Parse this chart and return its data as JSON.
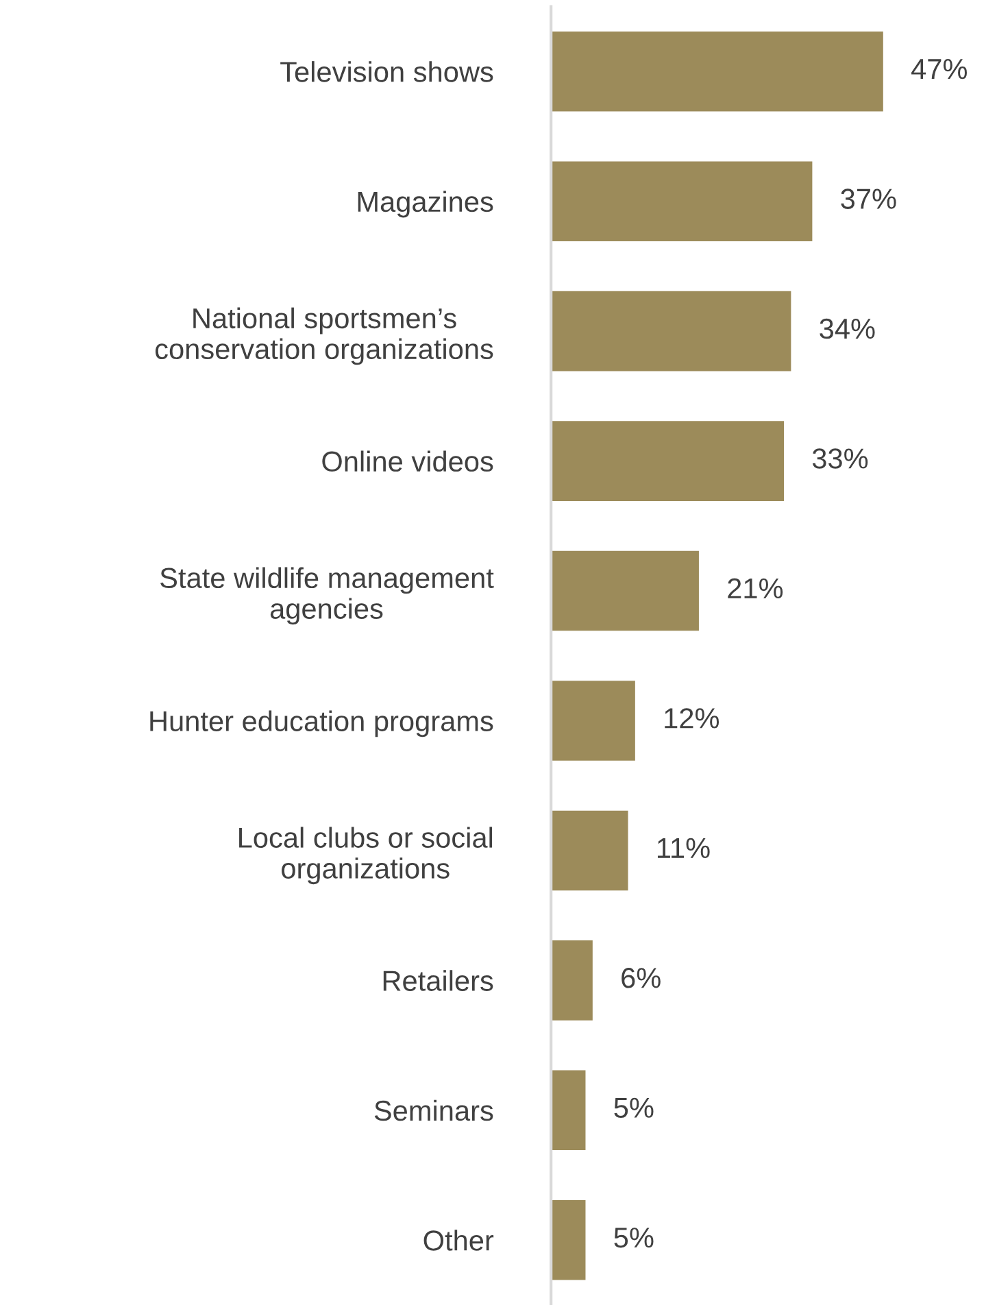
{
  "chart_data": {
    "type": "bar",
    "orientation": "horizontal",
    "categories": [
      "Television shows",
      "Magazines",
      "National sportsmen’s\nconservation organizations",
      "Online videos",
      "State wildlife management\nagencies",
      "Hunter education programs",
      "Local clubs or social\norganizations",
      "Retailers",
      "Seminars",
      "Other"
    ],
    "values": [
      47,
      37,
      34,
      33,
      21,
      12,
      11,
      6,
      5,
      5
    ],
    "value_labels": [
      "47%",
      "37%",
      "34%",
      "33%",
      "21%",
      "12%",
      "11%",
      "6%",
      "5%",
      "5%"
    ],
    "color": "#9c8b5a"
  }
}
